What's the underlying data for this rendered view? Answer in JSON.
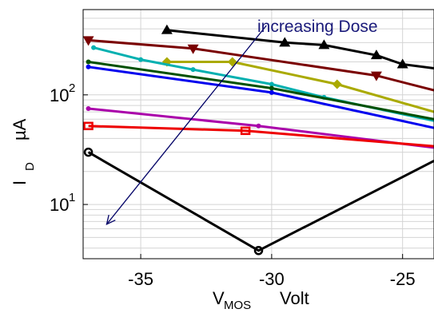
{
  "chart_data": {
    "type": "line",
    "title": "",
    "xlabel": {
      "main": "V",
      "sub": "MOS",
      "unit": "Volt"
    },
    "ylabel": {
      "main": "I",
      "sub": "D",
      "unit": "µA"
    },
    "xlim": [
      -37.2,
      -23.8
    ],
    "ylim": [
      3.2,
      600
    ],
    "yscale": "log",
    "grid": true,
    "legend": "none",
    "x_ticks": [
      -35,
      -30,
      -25
    ],
    "x_tick_labels": [
      "-35",
      "-30",
      "-25"
    ],
    "y_ticks": [
      10,
      100
    ],
    "y_tick_labels": [
      {
        "base": "10",
        "exp": "1"
      },
      {
        "base": "10",
        "exp": "2"
      }
    ],
    "annotation": {
      "text": "increasing Dose",
      "color": "#1a1a7a",
      "arrow_color": "#000066",
      "arrow_from": [
        -30.2,
        430
      ],
      "arrow_to": [
        -36.3,
        6.6
      ]
    },
    "series": [
      {
        "color": "#000000",
        "marker": "triangle-up",
        "x": [
          -34,
          -29.5,
          -28,
          -26,
          -25,
          -23.8
        ],
        "y": [
          390,
          300,
          285,
          230,
          190,
          175
        ]
      },
      {
        "color": "#7a0000",
        "marker": "triangle-down",
        "x": [
          -37,
          -33,
          -26,
          -23.8
        ],
        "y": [
          315,
          265,
          150,
          110
        ]
      },
      {
        "color": "#aaaa00",
        "marker": "diamond",
        "x": [
          -34,
          -31.5,
          -27.5,
          -23.8
        ],
        "y": [
          200,
          200,
          125,
          70
        ]
      },
      {
        "color": "#00b0b0",
        "marker": "dot",
        "x": [
          -36.8,
          -35,
          -33,
          -30,
          -28,
          -23.8
        ],
        "y": [
          270,
          210,
          170,
          125,
          95,
          58
        ]
      },
      {
        "color": "#005000",
        "marker": "dot",
        "x": [
          -37,
          -30,
          -23.8
        ],
        "y": [
          200,
          115,
          60
        ]
      },
      {
        "color": "#0000ee",
        "marker": "dot",
        "x": [
          -37,
          -30,
          -23.8
        ],
        "y": [
          180,
          105,
          50
        ]
      },
      {
        "color": "#aa00aa",
        "marker": "dot",
        "x": [
          -37,
          -30.5,
          -23.8
        ],
        "y": [
          75,
          52,
          33
        ]
      },
      {
        "color": "#ee0000",
        "marker": "square",
        "x": [
          -37,
          -31,
          -23.8
        ],
        "y": [
          52,
          47,
          34
        ]
      },
      {
        "color": "#000000",
        "marker": "circle",
        "x": [
          -37,
          -30.5,
          -23.8
        ],
        "y": [
          30,
          3.8,
          25
        ]
      }
    ]
  }
}
